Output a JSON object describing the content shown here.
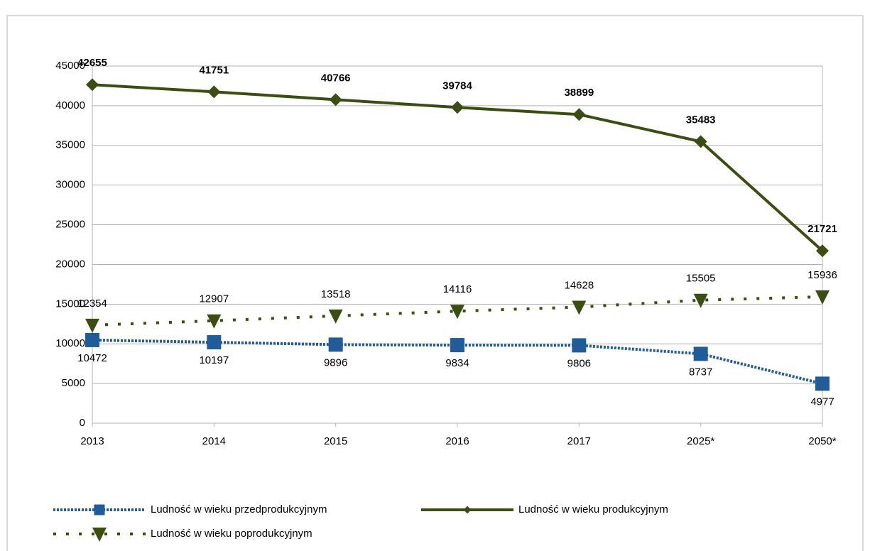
{
  "chart_data": {
    "type": "line",
    "categories": [
      "2013",
      "2014",
      "2015",
      "2016",
      "2017",
      "2025*",
      "2050*"
    ],
    "series": [
      {
        "name": "Ludność w wieku przedprodukcyjnym",
        "color": "#1f5c99",
        "marker": "square",
        "line_style": "dotted",
        "values": [
          10472,
          10197,
          9896,
          9834,
          9806,
          8737,
          4977
        ]
      },
      {
        "name": "Ludność w wieku produkcyjnym",
        "color": "#3b4d10",
        "marker": "diamond",
        "line_style": "solid",
        "values": [
          42655,
          41751,
          40766,
          39784,
          38899,
          35483,
          21721
        ]
      },
      {
        "name": "Ludność w wieku poprodukcyjnym",
        "color": "#3b4d10",
        "marker": "triangle-down",
        "line_style": "sparse-dotted",
        "values": [
          12354,
          12907,
          13518,
          14116,
          14628,
          15505,
          15936
        ]
      }
    ],
    "ylim": [
      0,
      45000
    ],
    "yticks": [
      0,
      5000,
      10000,
      15000,
      20000,
      25000,
      30000,
      35000,
      40000,
      45000
    ],
    "grid": true,
    "legend": "bottom"
  }
}
